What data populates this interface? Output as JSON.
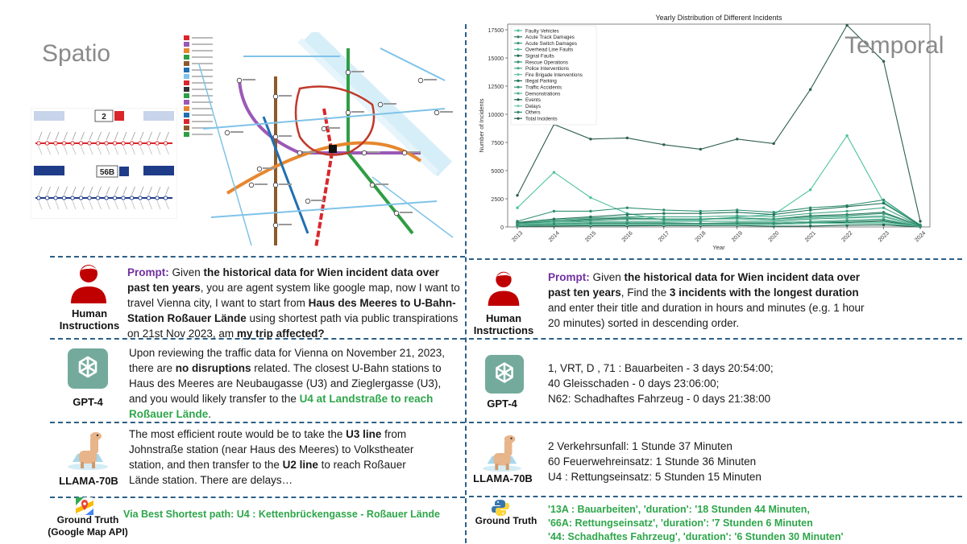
{
  "left": {
    "section_title": "Spatio",
    "prompt": {
      "label": "Prompt:",
      "segments": [
        {
          "t": " Given ",
          "s": "n"
        },
        {
          "t": "the historical data for Wien incident data over past ten years",
          "s": "b"
        },
        {
          "t": ", you are agent system like google map, now I want to travel Vienna city, I want to start from ",
          "s": "n"
        },
        {
          "t": "Haus des Meeres to U-Bahn-Station Roßauer Lände",
          "s": "b"
        },
        {
          "t": " using shortest path via public transpirations on 21st Nov 2023, am ",
          "s": "n"
        },
        {
          "t": "my trip affected?",
          "s": "b"
        }
      ],
      "role_label": "Human Instructions"
    },
    "gpt4": {
      "name": "GPT-4",
      "segments": [
        {
          "t": "Upon reviewing the traffic data for Vienna on November 21, 2023, there are ",
          "s": "n"
        },
        {
          "t": "no disruptions",
          "s": "b"
        },
        {
          "t": " related. The closest U-Bahn stations to Haus des Meeres are Neubaugasse (U3) and Zieglergasse (U3), and you would likely transfer to the ",
          "s": "n"
        },
        {
          "t": "U4 at Landstraße to reach Roßauer Lände",
          "s": "g"
        },
        {
          "t": ".",
          "s": "n"
        }
      ]
    },
    "llama": {
      "name": "LLAMA-70B",
      "segments": [
        {
          "t": "The most efficient route would be to take the ",
          "s": "n"
        },
        {
          "t": "U3 line",
          "s": "b"
        },
        {
          "t": " from Johnstraße station (near Haus des Meeres) to Volkstheater station, and then transfer to the ",
          "s": "n"
        },
        {
          "t": "U2 line",
          "s": "b"
        },
        {
          "t": " to reach Roßauer Lände station. There are delays…",
          "s": "n"
        }
      ]
    },
    "ground_truth": {
      "label_line1": "Ground Truth",
      "label_line2": "(Google Map API)",
      "text": "Via Best Shortest path: U4 : Kettenbrückengasse - Roßauer Lände"
    },
    "bus_cards": [
      {
        "route": "2",
        "color": "#d9262b"
      },
      {
        "route": "56B",
        "color": "#1f3c88"
      }
    ]
  },
  "right": {
    "section_title": "Temporal",
    "prompt": {
      "label": "Prompt:",
      "segments": [
        {
          "t": " Given ",
          "s": "n"
        },
        {
          "t": "the historical data for Wien incident data over past ten years",
          "s": "b"
        },
        {
          "t": ", Find the ",
          "s": "n"
        },
        {
          "t": "3 incidents with the longest duration",
          "s": "b"
        },
        {
          "t": " and enter their title and duration in hours and minutes (e.g. 1 hour 20 minutes) sorted in descending order.",
          "s": "n"
        }
      ],
      "role_label": "Human Instructions"
    },
    "gpt4": {
      "name": "GPT-4",
      "lines": [
        "1, VRT, D , 71 : Bauarbeiten - 3 days 20:54:00;",
        "40 Gleisschaden - 0 days 23:06:00;",
        "N62: Schadhaftes Fahrzeug - 0 days 21:38:00"
      ]
    },
    "llama": {
      "name": "LLAMA-70B",
      "lines": [
        "2 Verkehrsunfall: 1 Stunde 37 Minuten",
        "60 Feuerwehreinsatz: 1 Stunde 36 Minuten",
        "U4 : Rettungseinsatz: 5 Stunden 15 Minuten"
      ]
    },
    "ground_truth": {
      "label": "Ground Truth",
      "lines": [
        "'13A : Bauarbeiten', 'duration': '18 Stunden 44 Minuten,",
        "'66A: Rettungseinsatz', 'duration': '7 Stunden 6 Minuten",
        "'44: Schadhaftes Fahrzeug', 'duration': '6 Stunden 30 Minuten'"
      ]
    }
  },
  "chart_data": {
    "type": "line",
    "title": "Yearly Distribution of Different Incidents",
    "xlabel": "Year",
    "ylabel": "Number of Incidents",
    "x": [
      2013,
      2014,
      2015,
      2016,
      2017,
      2018,
      2019,
      2020,
      2021,
      2022,
      2023,
      2024
    ],
    "ylim": [
      0,
      18000
    ],
    "yticks": [
      0,
      2500,
      5000,
      7500,
      10000,
      12500,
      15000,
      17500
    ],
    "legend_position": "top-left",
    "series": [
      {
        "name": "Faulty Vehicles",
        "color": "#4fc3a1",
        "values": [
          1700,
          4850,
          2600,
          1200,
          600,
          600,
          900,
          1100,
          3300,
          8100,
          2200,
          200
        ]
      },
      {
        "name": "Acute Track Damages",
        "color": "#2c7a5f",
        "values": [
          400,
          500,
          700,
          800,
          700,
          700,
          800,
          700,
          1000,
          1100,
          1300,
          100
        ]
      },
      {
        "name": "Acute Switch Damages",
        "color": "#3d9a7c",
        "values": [
          300,
          400,
          500,
          500,
          500,
          500,
          500,
          500,
          700,
          800,
          900,
          60
        ]
      },
      {
        "name": "Overhead Line Faults",
        "color": "#5bb595",
        "values": [
          200,
          300,
          400,
          400,
          400,
          300,
          400,
          400,
          500,
          600,
          700,
          40
        ]
      },
      {
        "name": "Signal Faults",
        "color": "#1e6b52",
        "values": [
          100,
          200,
          300,
          300,
          300,
          300,
          300,
          300,
          400,
          400,
          500,
          30
        ]
      },
      {
        "name": "Rescue Operations",
        "color": "#2f8f72",
        "values": [
          500,
          1400,
          1400,
          1700,
          1500,
          1400,
          1500,
          1300,
          1700,
          1900,
          2400,
          150
        ]
      },
      {
        "name": "Police Interventions",
        "color": "#47a888",
        "values": [
          300,
          600,
          800,
          900,
          900,
          900,
          1000,
          900,
          1200,
          1400,
          1700,
          100
        ]
      },
      {
        "name": "Fire Brigade Interventions",
        "color": "#6cc7a6",
        "values": [
          200,
          400,
          600,
          700,
          700,
          700,
          700,
          600,
          800,
          900,
          1000,
          60
        ]
      },
      {
        "name": "Illegal Parking",
        "color": "#25735a",
        "values": [
          400,
          700,
          900,
          1100,
          1200,
          1200,
          1300,
          1100,
          1500,
          1800,
          2100,
          120
        ]
      },
      {
        "name": "Traffic Accidents",
        "color": "#3a9478",
        "values": [
          300,
          500,
          600,
          700,
          700,
          700,
          800,
          700,
          900,
          1000,
          1200,
          80
        ]
      },
      {
        "name": "Demonstrations",
        "color": "#56b18f",
        "values": [
          50,
          100,
          150,
          150,
          200,
          150,
          200,
          300,
          400,
          300,
          300,
          20
        ]
      },
      {
        "name": "Events",
        "color": "#1b6049",
        "values": [
          50,
          80,
          100,
          100,
          120,
          120,
          130,
          60,
          80,
          150,
          180,
          10
        ]
      },
      {
        "name": "Delays",
        "color": "#79d0b0",
        "values": [
          100,
          200,
          200,
          200,
          200,
          200,
          200,
          200,
          300,
          300,
          400,
          20
        ]
      },
      {
        "name": "Others",
        "color": "#338a6d",
        "values": [
          150,
          250,
          300,
          300,
          300,
          300,
          300,
          300,
          400,
          500,
          600,
          30
        ]
      },
      {
        "name": "Total Incidents",
        "color": "#2d5e4e",
        "values": [
          2800,
          9100,
          7800,
          7900,
          7300,
          6900,
          7800,
          7400,
          12200,
          17900,
          14700,
          500
        ]
      }
    ]
  }
}
